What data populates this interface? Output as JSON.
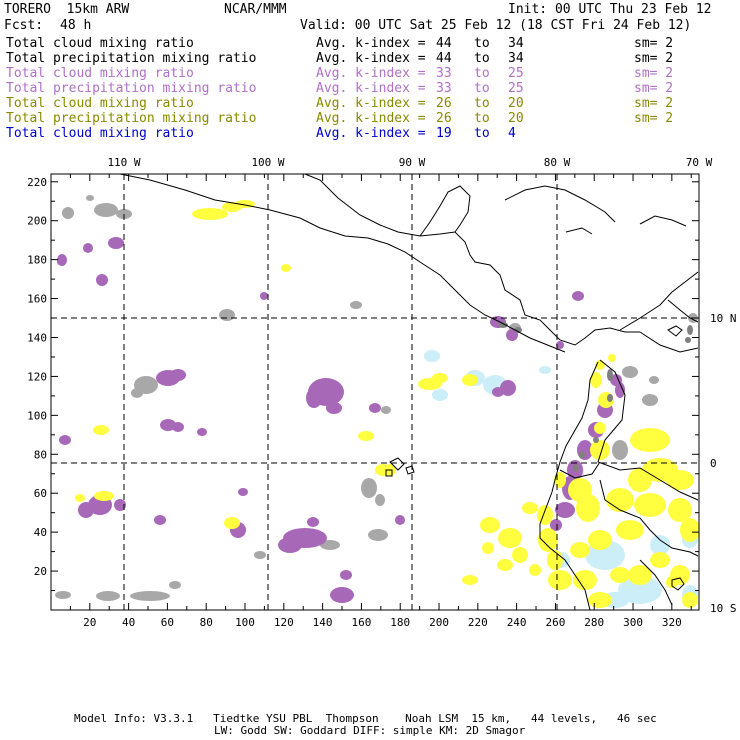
{
  "header": {
    "model": "TORERO  15km ARW",
    "center": "NCAR/MMM",
    "init": "Init: 00 UTC Thu 23 Feb 12",
    "fcst_label": "Fcst:",
    "fcst_value": "48 h",
    "valid": "Valid: 00 UTC Sat 25 Feb 12 (18 CST Fri 24 Feb 12)"
  },
  "legend": [
    {
      "field": "Total cloud mixing ratio",
      "kindex": "Avg. k-index =",
      "from": "44",
      "to_word": "to",
      "to": "34",
      "sm": "sm= 2",
      "color": "#000000"
    },
    {
      "field": "Total precipitation mixing ratio",
      "kindex": "Avg. k-index =",
      "from": "44",
      "to_word": "to",
      "to": "34",
      "sm": "sm= 2",
      "color": "#000000"
    },
    {
      "field": "Total cloud mixing ratio",
      "kindex": "Avg. k-index =",
      "from": "33",
      "to_word": "to",
      "to": "25",
      "sm": "sm= 2",
      "color": "#b070c8"
    },
    {
      "field": "Total precipitation mixing ratio",
      "kindex": "Avg. k-index =",
      "from": "33",
      "to_word": "to",
      "to": "25",
      "sm": "sm= 2",
      "color": "#b070c8"
    },
    {
      "field": "Total cloud mixing ratio",
      "kindex": "Avg. k-index =",
      "from": "26",
      "to_word": "to",
      "to": "20",
      "sm": "sm= 2",
      "color": "#8a8a00"
    },
    {
      "field": "Total precipitation mixing ratio",
      "kindex": "Avg. k-index =",
      "from": "26",
      "to_word": "to",
      "to": "20",
      "sm": "sm= 2",
      "color": "#8a8a00"
    },
    {
      "field": "Total cloud mixing ratio",
      "kindex": "Avg. k-index =",
      "from": "19",
      "to_word": "to",
      "to": "4",
      "sm": "",
      "color": "#0000cc"
    }
  ],
  "map": {
    "lon_labels": [
      "110 W",
      "100 W",
      "90 W",
      "80 W",
      "70 W"
    ],
    "lat_labels": [
      "10 N",
      "0",
      "10 S"
    ],
    "x_ticks": [
      "20",
      "40",
      "60",
      "80",
      "100",
      "120",
      "140",
      "160",
      "180",
      "200",
      "220",
      "240",
      "260",
      "280",
      "300",
      "320"
    ],
    "y_ticks": [
      "220",
      "200",
      "180",
      "160",
      "140",
      "120",
      "100",
      "80",
      "60",
      "40",
      "20"
    ],
    "colors": {
      "gray": "#a8a8a8",
      "purple": "#a868b8",
      "yellow": "#ffff40",
      "cyan": "#cceef8",
      "darkgray": "#808080",
      "coast": "#000000"
    }
  },
  "footer": {
    "line1": "Model Info: V3.3.1   Tiedtke YSU PBL  Thompson    Noah LSM  15 km,   44 levels,   46 sec",
    "line2": "LW: Godd SW: Goddard DIFF: simple KM: 2D Smagor"
  }
}
